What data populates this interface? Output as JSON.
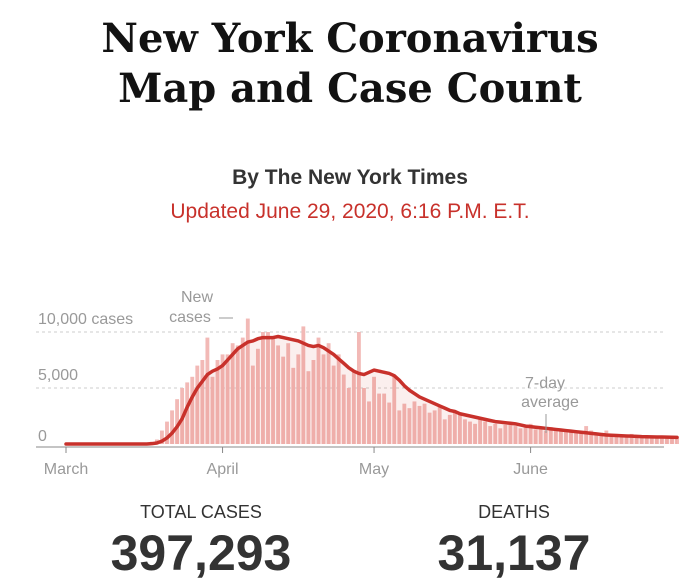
{
  "header": {
    "title_line1": "New York Coronavirus",
    "title_line2": "Map and Case Count",
    "byline": "By The New York Times",
    "updated": "Updated June 29, 2020, 6:16 P.M. E.T."
  },
  "colors": {
    "bar": "#f2b9b6",
    "line": "#c8312b",
    "updated_text": "#c8312b",
    "grid": "#cccccc",
    "text": "#333333"
  },
  "chart_data": {
    "type": "bar",
    "title": "",
    "xlabel": "",
    "ylabel": "",
    "ylim": [
      0,
      12000
    ],
    "yticks": [
      {
        "value": 0,
        "label": "0"
      },
      {
        "value": 5000,
        "label": "5,000"
      },
      {
        "value": 10000,
        "label": "10,000 cases"
      }
    ],
    "xticks": [
      {
        "date": "2020-03-01",
        "label": "March"
      },
      {
        "date": "2020-04-01",
        "label": "April"
      },
      {
        "date": "2020-05-01",
        "label": "May"
      },
      {
        "date": "2020-06-01",
        "label": "June"
      }
    ],
    "grid": true,
    "x_start": "2020-03-01",
    "series": [
      {
        "name": "New cases",
        "type": "bar",
        "values": [
          0,
          0,
          0,
          0,
          0,
          0,
          0,
          0,
          0,
          0,
          0,
          0,
          0,
          0,
          0,
          0,
          0,
          200,
          400,
          1200,
          2000,
          3000,
          4000,
          5000,
          5500,
          6000,
          7000,
          7500,
          9500,
          6000,
          7500,
          8000,
          8000,
          9000,
          8800,
          9500,
          11200,
          7000,
          8500,
          10000,
          10000,
          9500,
          8800,
          7800,
          9000,
          6800,
          8000,
          10500,
          6500,
          7500,
          9500,
          8000,
          9000,
          7000,
          8000,
          6200,
          5000,
          6500,
          10000,
          5000,
          3800,
          6000,
          4500,
          4500,
          3700,
          6000,
          3000,
          3600,
          3200,
          3800,
          3400,
          3600,
          2800,
          3000,
          3400,
          2200,
          2600,
          3000,
          2600,
          2200,
          2000,
          1800,
          2200,
          2000,
          1600,
          1800,
          1400,
          1700,
          1900,
          1600,
          1400,
          1500,
          1800,
          1300,
          1300,
          1200,
          1500,
          1300,
          1200,
          1300,
          1100,
          1000,
          1100,
          1600,
          1200,
          900,
          1000,
          1200,
          800,
          900,
          800,
          700,
          900,
          800,
          700,
          650,
          700,
          650,
          600,
          700,
          650,
          600
        ],
        "color": "#f2b9b6"
      },
      {
        "name": "7-day average",
        "type": "line",
        "values": [
          0,
          0,
          0,
          0,
          0,
          0,
          0,
          0,
          0,
          0,
          0,
          0,
          0,
          0,
          0,
          0,
          0,
          29,
          86,
          257,
          543,
          971,
          1543,
          2257,
          3300,
          4200,
          5000,
          5600,
          6200,
          6500,
          6700,
          7000,
          7500,
          8000,
          8500,
          8800,
          9100,
          9200,
          9400,
          9500,
          9500,
          9500,
          9600,
          9500,
          9400,
          9300,
          9200,
          9000,
          8800,
          8700,
          8800,
          8600,
          8300,
          8000,
          7600,
          7200,
          6800,
          6500,
          6300,
          6200,
          6400,
          6600,
          6500,
          6400,
          6300,
          6100,
          5700,
          5200,
          4800,
          4500,
          4200,
          4000,
          3800,
          3600,
          3400,
          3200,
          3000,
          2900,
          2700,
          2600,
          2500,
          2400,
          2300,
          2200,
          2100,
          2000,
          1950,
          1900,
          1850,
          1800,
          1700,
          1600,
          1550,
          1500,
          1450,
          1400,
          1350,
          1300,
          1250,
          1200,
          1150,
          1100,
          1050,
          1000,
          950,
          900,
          850,
          800,
          780,
          760,
          740,
          720,
          700,
          680,
          660,
          650,
          640,
          630,
          620,
          610,
          600,
          590
        ],
        "color": "#c8312b"
      }
    ],
    "annotations": [
      {
        "label": "New cases",
        "target": "New cases"
      },
      {
        "label": "7-day average",
        "target": "7-day average"
      }
    ]
  },
  "stats": {
    "total_cases_label": "TOTAL CASES",
    "total_cases_value": "397,293",
    "deaths_label": "DEATHS",
    "deaths_value": "31,137"
  }
}
